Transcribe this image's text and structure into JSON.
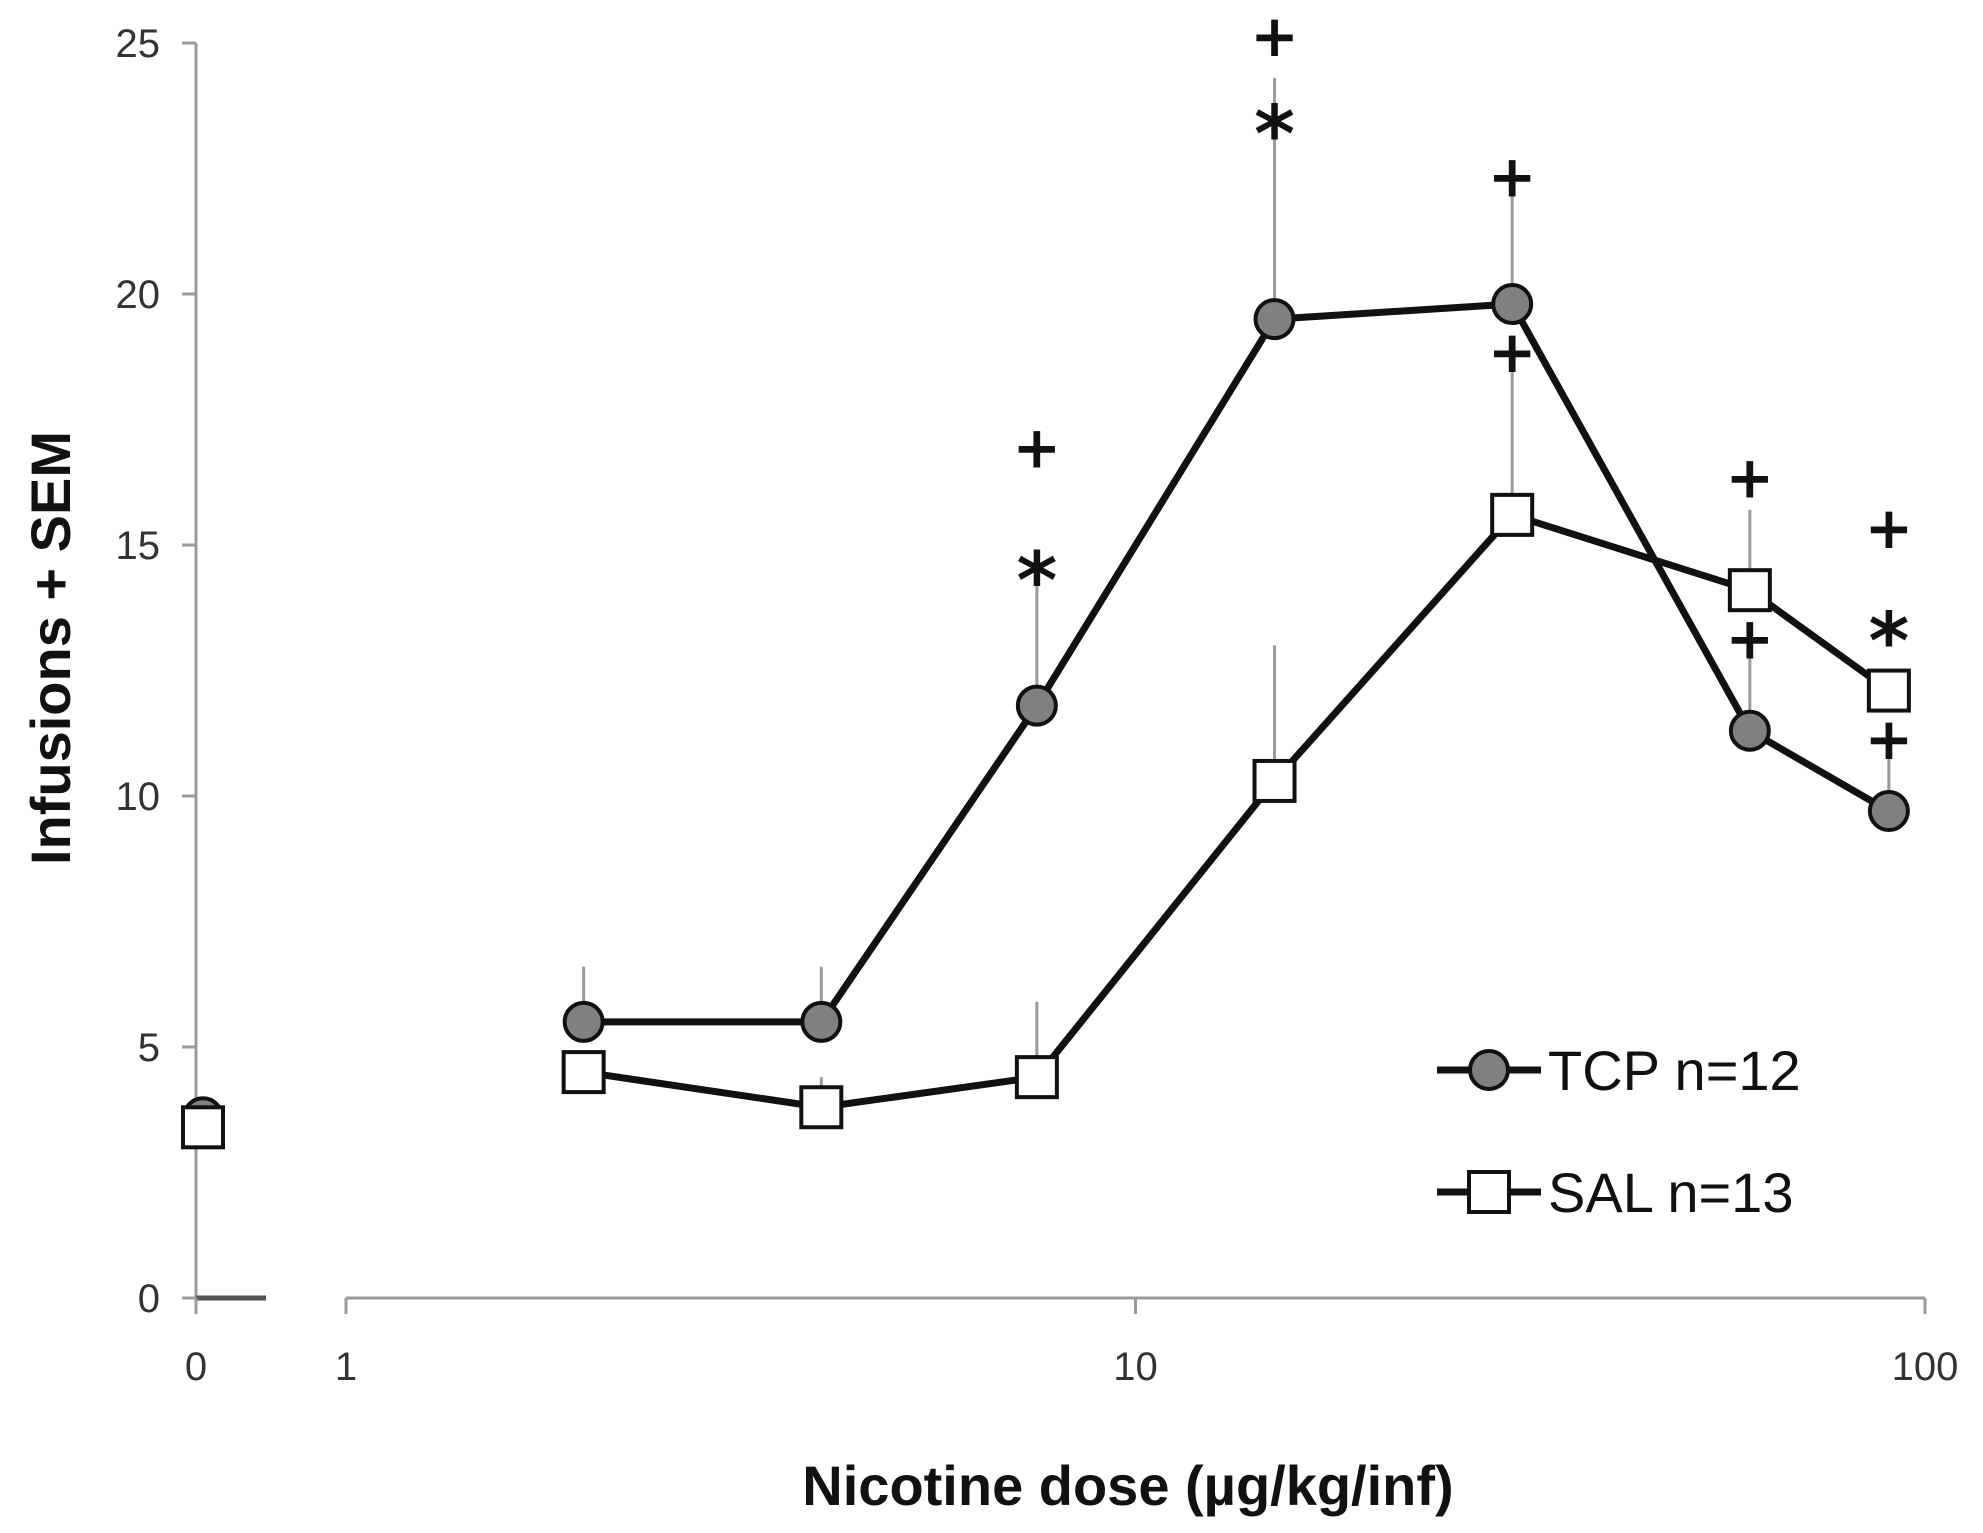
{
  "chart_data": {
    "type": "line",
    "xlabel": "Nicotine dose (µg/kg/inf)",
    "ylabel": "Infusions + SEM",
    "x_scale": "log",
    "xlim": [
      1,
      100
    ],
    "ylim": [
      0,
      25
    ],
    "y_ticks": [
      0,
      5,
      10,
      15,
      20,
      25
    ],
    "x_ticks": [
      1,
      10,
      100
    ],
    "zero_tick": "0",
    "grid": false,
    "legend_position": "bottom-right",
    "series": [
      {
        "name": "TCP n=12",
        "marker": "circle",
        "color": "#808080",
        "baseline": 3.6,
        "x": [
          2,
          4,
          7.5,
          15,
          30,
          60,
          90
        ],
        "y": [
          5.5,
          5.5,
          11.8,
          19.5,
          19.8,
          11.3,
          9.7
        ],
        "sem": [
          1.1,
          1.1,
          2.8,
          4.8,
          2.6,
          2.0,
          1.4
        ]
      },
      {
        "name": "SAL n=13",
        "marker": "square",
        "color": "#ffffff",
        "baseline": 3.4,
        "x": [
          2,
          4,
          7.5,
          15,
          30,
          60,
          90
        ],
        "y": [
          4.5,
          3.8,
          4.4,
          10.3,
          15.6,
          14.1,
          12.1
        ],
        "sem": [
          0,
          0.6,
          1.5,
          2.7,
          3.3,
          1.6,
          0
        ]
      }
    ],
    "annotations": [
      {
        "x": 7.5,
        "y": 14.5,
        "text": "*",
        "size": "large"
      },
      {
        "x": 7.5,
        "y": 16.9,
        "text": "+",
        "size": "small"
      },
      {
        "x": 15,
        "y": 23.4,
        "text": "*",
        "size": "large"
      },
      {
        "x": 15,
        "y": 25.1,
        "text": "+",
        "size": "small"
      },
      {
        "x": 30,
        "y": 22.3,
        "text": "+",
        "size": "small"
      },
      {
        "x": 30,
        "y": 18.8,
        "text": "+",
        "size": "small"
      },
      {
        "x": 60,
        "y": 16.3,
        "text": "+",
        "size": "small"
      },
      {
        "x": 60,
        "y": 13.1,
        "text": "+",
        "size": "small"
      },
      {
        "x": 90,
        "y": 13.3,
        "text": "*",
        "size": "large"
      },
      {
        "x": 90,
        "y": 15.3,
        "text": "+",
        "size": "small"
      },
      {
        "x": 90,
        "y": 11.1,
        "text": "+",
        "size": "small"
      }
    ]
  }
}
